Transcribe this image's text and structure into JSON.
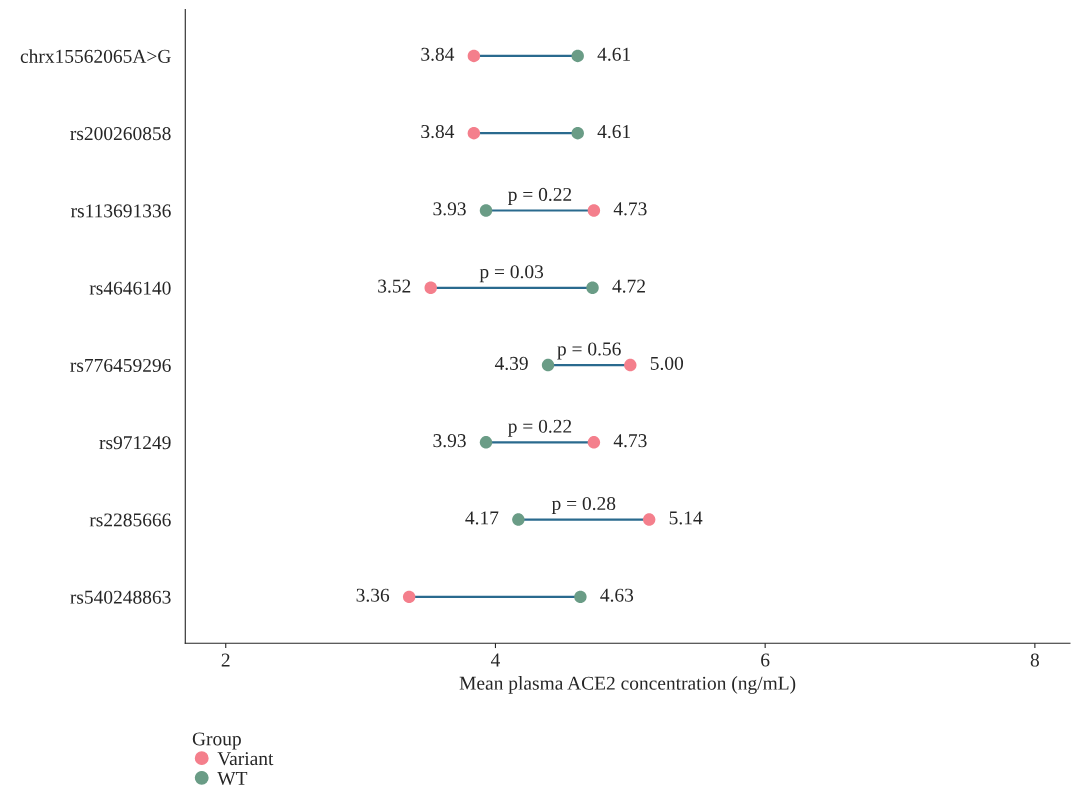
{
  "chart_data": {
    "type": "scatter",
    "orientation": "horizontal",
    "line_style": "solid",
    "categories": [
      "chrx15562065A>G",
      "rs200260858",
      "rs113691336",
      "rs4646140",
      "rs776459296",
      "rs971249",
      "rs2285666",
      "rs540248863"
    ],
    "series": [
      {
        "name": "Variant",
        "color": "#f47f8c",
        "values": [
          3.84,
          3.84,
          4.73,
          3.52,
          5.0,
          4.73,
          5.14,
          3.36
        ],
        "value_labels": [
          "3.84",
          "3.84",
          "4.73",
          "3.52",
          "5.00",
          "4.73",
          "5.14",
          "3.36"
        ]
      },
      {
        "name": "WT",
        "color": "#6a9c86",
        "values": [
          4.61,
          4.61,
          3.93,
          4.72,
          4.39,
          3.93,
          4.17,
          4.63
        ],
        "value_labels": [
          "4.61",
          "4.61",
          "3.93",
          "4.72",
          "4.39",
          "3.93",
          "4.17",
          "4.63"
        ]
      }
    ],
    "xlabel": "Mean plasma ACE2 concentration (ng/mL)",
    "legend_title": "Group",
    "legend": "bottom left",
    "xlim": [
      1.7,
      8.26
    ],
    "xticks": [
      2,
      4,
      6,
      8
    ],
    "grid": false,
    "marker": "circle",
    "annotations": [
      {
        "text": "p = 0.22",
        "x": 3.93,
        "y": "rs113691336"
      },
      {
        "text": "p = 0.03",
        "x": 3.52,
        "y": "rs4646140"
      },
      {
        "text": "p = 0.56",
        "x": 4.39,
        "y": "rs776459296"
      },
      {
        "text": "p = 0.22",
        "x": 3.93,
        "y": "rs971249"
      },
      {
        "text": "p = 0.28",
        "x": 4.17,
        "y": "rs2285666"
      }
    ]
  }
}
